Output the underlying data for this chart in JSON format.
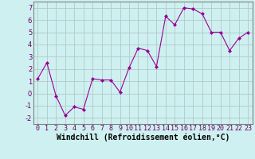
{
  "x": [
    0,
    1,
    2,
    3,
    4,
    5,
    6,
    7,
    8,
    9,
    10,
    11,
    12,
    13,
    14,
    15,
    16,
    17,
    18,
    19,
    20,
    21,
    22,
    23
  ],
  "y": [
    1.2,
    2.5,
    -0.2,
    -1.8,
    -1.1,
    -1.3,
    1.2,
    1.1,
    1.1,
    0.1,
    2.1,
    3.7,
    3.5,
    2.2,
    6.3,
    5.6,
    7.0,
    6.9,
    6.5,
    5.0,
    5.0,
    3.5,
    4.5,
    5.0
  ],
  "line_color": "#990099",
  "marker": "D",
  "marker_size": 2.0,
  "background_color": "#cff0f0",
  "grid_color": "#b0c8c8",
  "xlabel": "Windchill (Refroidissement éolien,°C)",
  "ylabel": "",
  "xlim": [
    -0.5,
    23.5
  ],
  "ylim": [
    -2.5,
    7.5
  ],
  "yticks": [
    -2,
    -1,
    0,
    1,
    2,
    3,
    4,
    5,
    6,
    7
  ],
  "xticks": [
    0,
    1,
    2,
    3,
    4,
    5,
    6,
    7,
    8,
    9,
    10,
    11,
    12,
    13,
    14,
    15,
    16,
    17,
    18,
    19,
    20,
    21,
    22,
    23
  ],
  "xtick_labels": [
    "0",
    "1",
    "2",
    "3",
    "4",
    "5",
    "6",
    "7",
    "8",
    "9",
    "10",
    "11",
    "12",
    "13",
    "14",
    "15",
    "16",
    "17",
    "18",
    "19",
    "20",
    "21",
    "22",
    "23"
  ],
  "tick_fontsize": 6,
  "xlabel_fontsize": 7,
  "spine_color": "#808080"
}
